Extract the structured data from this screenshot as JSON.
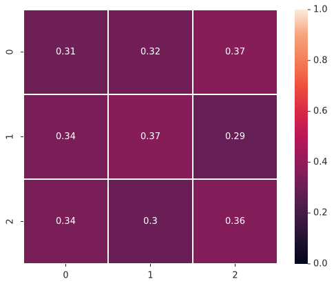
{
  "chart_data": {
    "type": "heatmap",
    "x_categories": [
      "0",
      "1",
      "2"
    ],
    "y_categories": [
      "0",
      "1",
      "2"
    ],
    "values": [
      [
        0.31,
        0.32,
        0.37
      ],
      [
        0.34,
        0.37,
        0.29
      ],
      [
        0.34,
        0.3,
        0.36
      ]
    ],
    "colormap": "rocket",
    "clim": [
      0,
      1
    ],
    "cticks": [
      {
        "value": 0,
        "label": "0.0"
      },
      0.2,
      0.4,
      0.6,
      0.8,
      {
        "value": 1,
        "label": "1.0"
      }
    ]
  }
}
